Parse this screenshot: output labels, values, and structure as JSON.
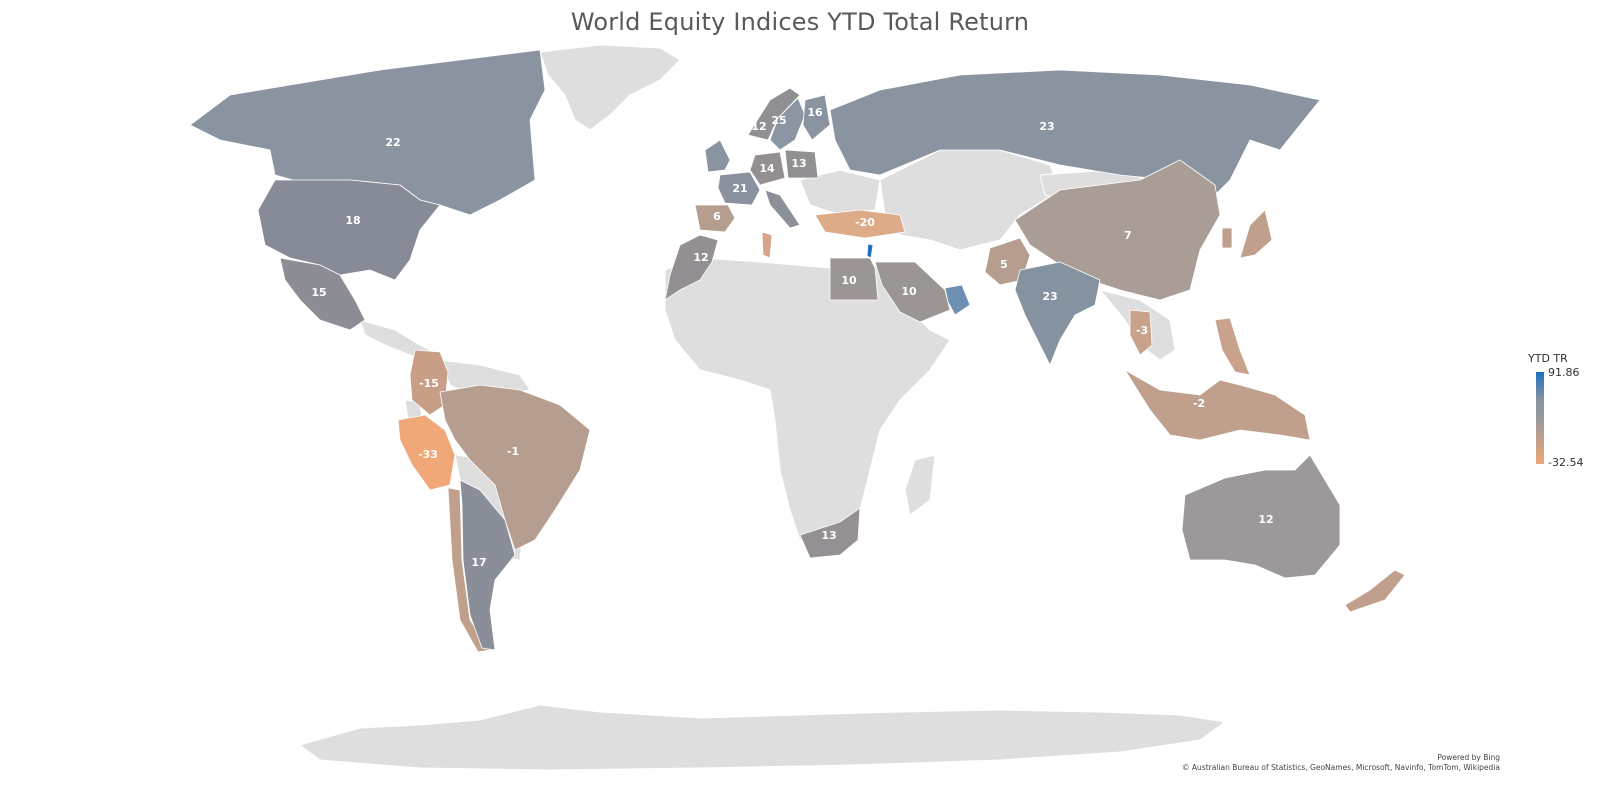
{
  "title": "World Equity Indices YTD Total Return",
  "legend": {
    "title": "YTD TR",
    "max": "91.86",
    "min": "-32.54",
    "max_color": "#1f6fbf",
    "mid_color": "#9e9a98",
    "min_color": "#f0a878"
  },
  "attribution": {
    "powered_by": "Powered by Bing",
    "copyright": "© Australian Bureau of Statistics, GeoNames, Microsoft, Navinfo, TomTom, Wikipedia"
  },
  "colors": {
    "no_data": "#dedede",
    "label": "#ffffff"
  },
  "countries": [
    {
      "name": "Canada",
      "value": "22"
    },
    {
      "name": "United States",
      "value": "18"
    },
    {
      "name": "Mexico",
      "value": "15"
    },
    {
      "name": "Colombia",
      "value": "-15"
    },
    {
      "name": "Peru",
      "value": "-33"
    },
    {
      "name": "Brazil",
      "value": "-1"
    },
    {
      "name": "Argentina",
      "value": "17"
    },
    {
      "name": "Norway",
      "value": "12"
    },
    {
      "name": "Sweden",
      "value": "25"
    },
    {
      "name": "Finland",
      "value": "16"
    },
    {
      "name": "Germany",
      "value": "14"
    },
    {
      "name": "Poland",
      "value": "13"
    },
    {
      "name": "France",
      "value": "21"
    },
    {
      "name": "Spain",
      "value": "6"
    },
    {
      "name": "Turkey",
      "value": "-20"
    },
    {
      "name": "Morocco",
      "value": "12"
    },
    {
      "name": "Egypt",
      "value": "10"
    },
    {
      "name": "Saudi Arabia",
      "value": "10"
    },
    {
      "name": "Russia",
      "value": "23"
    },
    {
      "name": "Pakistan",
      "value": "5"
    },
    {
      "name": "India",
      "value": "23"
    },
    {
      "name": "China",
      "value": "7"
    },
    {
      "name": "Thailand",
      "value": "-3"
    },
    {
      "name": "Indonesia",
      "value": "-2"
    },
    {
      "name": "South Africa",
      "value": "13"
    },
    {
      "name": "Australia",
      "value": "12"
    }
  ]
}
